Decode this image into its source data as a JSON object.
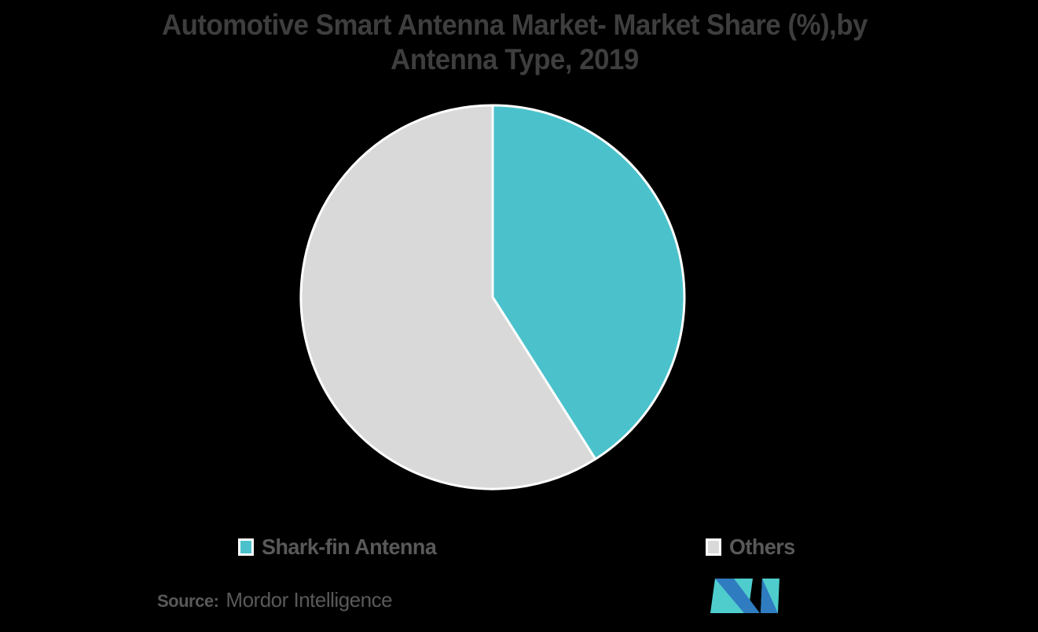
{
  "title": {
    "line1": "Automotive Smart Antenna Market- Market Share (%),by",
    "line2": "Antenna Type, 2019"
  },
  "chart_data": {
    "type": "pie",
    "title": "Automotive Smart Antenna Market- Market Share (%),by Antenna Type, 2019",
    "year": "2019",
    "units": "%",
    "start_angle_deg": 0,
    "direction": "clockwise",
    "legend_position": "bottom",
    "slices": [
      {
        "label": "Shark-fin Antenna",
        "value": 41,
        "color": "#4BC2CB"
      },
      {
        "label": "Others",
        "value": 59,
        "color": "#D9D9D9"
      }
    ]
  },
  "legend": {
    "items": [
      {
        "label": "Shark-fin Antenna",
        "color": "#4BC2CB"
      },
      {
        "label": "Others",
        "color": "#D9D9D9"
      }
    ]
  },
  "source": {
    "label": "Source:",
    "text": "Mordor Intelligence"
  },
  "logo": {
    "name": "mordor-intelligence-logo"
  },
  "colors": {
    "background": "#000000",
    "title_text": "#3E3E3E",
    "legend_text": "#595959",
    "source_text": "#595959",
    "pie_stroke": "#FFFFFF",
    "logo_teal": "#4FCDCD",
    "logo_blue": "#2F7CC0"
  }
}
